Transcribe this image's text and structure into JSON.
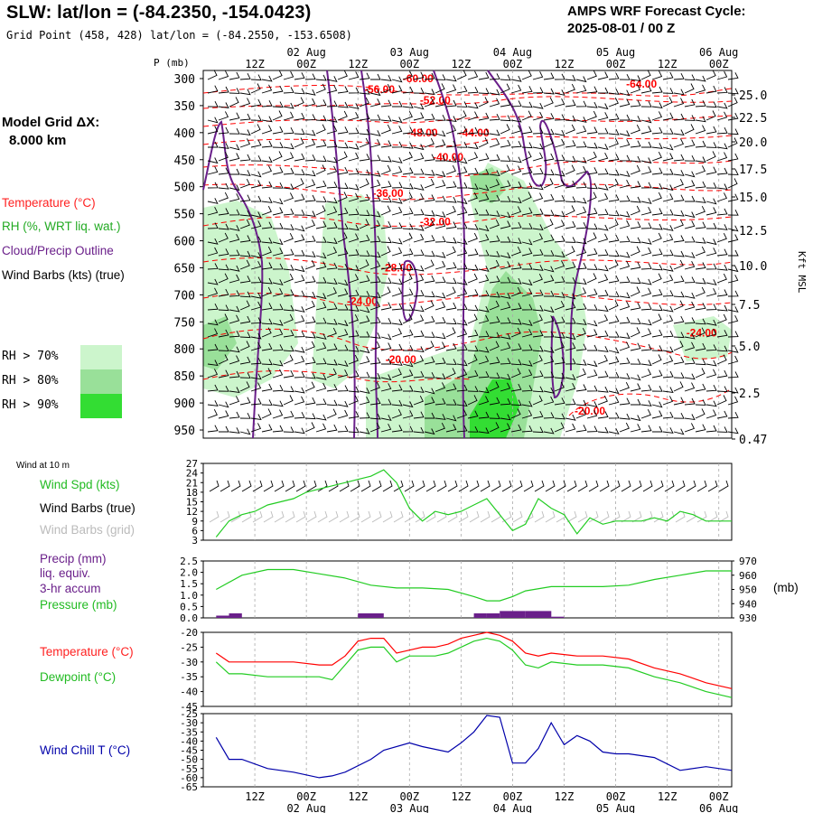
{
  "header": {
    "title": "SLW:  lat/lon = (-84.2350, -154.0423)",
    "subtitle": "Grid Point (458, 428) lat/lon = (-84.2550, -153.6508)",
    "cycle_line1": "AMPS WRF Forecast Cycle:",
    "cycle_line2": "2025-08-01 / 00  Z"
  },
  "legend": {
    "model_grid_label": "Model Grid ΔX:",
    "model_grid_value": "8.000 km",
    "temperature": "Temperature (°C)",
    "rh": "RH (%, WRT liq. wat.)",
    "cloud": "Cloud/Precip Outline",
    "wind_barbs": "Wind Barbs (kts) (true)",
    "rh70": "RH > 70%",
    "rh80": "RH > 80%",
    "rh90": "RH > 90%"
  },
  "colors": {
    "temperature": "#ff0000",
    "rh": "#22bb22",
    "cloud": "#6a1f8a",
    "rh70": "#ccf5cc",
    "rh80": "#99e099",
    "rh90": "#33dd33",
    "wind_chill": "#0000aa",
    "grid": "#aaaaaa"
  },
  "lower_labels": {
    "wind_at_10m": "Wind at 10 m",
    "wind_spd": "Wind Spd (kts)",
    "wind_barbs_true": "Wind Barbs (true)",
    "wind_barbs_grid": "Wind Barbs (grid)",
    "precip": "Precip (mm)",
    "liq_equiv": "liq. equiv.",
    "accum": "3-hr accum",
    "pressure": "Pressure (mb)",
    "pressure_unit": "(mb)",
    "temperature": "Temperature (°C)",
    "dewpoint": "Dewpoint (°C)",
    "wind_chill": "Wind Chill T (°C)"
  },
  "chart_data": {
    "type": "meteogram",
    "time_axis": {
      "hour_labels": [
        "12Z",
        "00Z",
        "12Z",
        "00Z",
        "12Z",
        "00Z",
        "12Z",
        "00Z",
        "12Z",
        "00Z"
      ],
      "date_labels": [
        "02 Aug",
        "03 Aug",
        "04 Aug",
        "05 Aug",
        "06 Aug"
      ],
      "hours_range": [
        3,
        120
      ]
    },
    "cross_section": {
      "pressure_label": "P (mb)",
      "pressure_levels": [
        300,
        350,
        400,
        450,
        500,
        550,
        600,
        650,
        700,
        750,
        800,
        850,
        900,
        950
      ],
      "height_label": "Kft MSL",
      "height_ticks": [
        "25.0",
        "22.5",
        "20.0",
        "17.5",
        "15.0",
        "12.5",
        "10.0",
        "7.5",
        "5.0",
        "2.5",
        "0.47"
      ],
      "temperature_contour_labels": [
        {
          "label": "-60.00",
          "t": 47,
          "p": 300
        },
        {
          "label": "-64.00",
          "t": 99,
          "p": 310
        },
        {
          "label": "-56.00",
          "t": 38,
          "p": 320
        },
        {
          "label": "-52.00",
          "t": 51,
          "p": 340
        },
        {
          "label": "-48.00",
          "t": 48,
          "p": 400
        },
        {
          "label": "-44.00",
          "t": 60,
          "p": 400
        },
        {
          "label": "-40.00",
          "t": 54,
          "p": 445
        },
        {
          "label": "-36.00",
          "t": 40,
          "p": 512
        },
        {
          "label": "-32.00",
          "t": 51,
          "p": 565
        },
        {
          "label": "-28.00",
          "t": 42,
          "p": 650
        },
        {
          "label": "-24.00",
          "t": 34,
          "p": 712
        },
        {
          "label": "-24.00",
          "t": 113,
          "p": 770
        },
        {
          "label": "-20.00",
          "t": 43,
          "p": 820
        },
        {
          "label": "-20.00",
          "t": 87,
          "p": 915
        }
      ]
    },
    "wind_speed_10m": {
      "ylabel": "Wind Spd (kts)",
      "ylim": [
        3,
        27
      ],
      "ticks": [
        3,
        6,
        9,
        12,
        15,
        18,
        21,
        24,
        27
      ],
      "x": [
        0,
        3,
        6,
        9,
        12,
        15,
        18,
        21,
        24,
        27,
        30,
        33,
        36,
        39,
        42,
        45,
        48,
        51,
        54,
        57,
        60,
        63,
        66,
        69,
        72,
        75,
        78,
        81,
        84,
        87,
        90,
        93,
        96,
        99,
        102,
        105,
        108,
        111,
        114,
        117,
        120
      ],
      "values": [
        4,
        9,
        11,
        12,
        14,
        15,
        16,
        18,
        19,
        20,
        21,
        22,
        23,
        25,
        21,
        13,
        9,
        12,
        11,
        12,
        14,
        16,
        11,
        6,
        8,
        16,
        13,
        11,
        5,
        10,
        8,
        9,
        9,
        9,
        10,
        9,
        12,
        11,
        9,
        9,
        9
      ]
    },
    "precip": {
      "ylabel": "Precip (mm)",
      "ylim": [
        0,
        2.5
      ],
      "ticks": [
        0.0,
        0.5,
        1.0,
        1.5,
        2.0,
        2.5
      ],
      "bins": [
        {
          "t": 0,
          "mm": 0.1
        },
        {
          "t": 3,
          "mm": 0.2
        },
        {
          "t": 33,
          "mm": 0.2
        },
        {
          "t": 36,
          "mm": 0.2
        },
        {
          "t": 60,
          "mm": 0.2
        },
        {
          "t": 63,
          "mm": 0.2
        },
        {
          "t": 66,
          "mm": 0.3
        },
        {
          "t": 69,
          "mm": 0.3
        },
        {
          "t": 72,
          "mm": 0.3
        },
        {
          "t": 75,
          "mm": 0.3
        },
        {
          "t": 78,
          "mm": 0.05
        }
      ]
    },
    "pressure": {
      "ylabel": "Pressure (mb)",
      "ylim": [
        930,
        970
      ],
      "ticks": [
        930,
        940,
        950,
        960,
        970
      ],
      "x": [
        0,
        6,
        12,
        18,
        24,
        30,
        36,
        42,
        48,
        54,
        60,
        63,
        66,
        69,
        72,
        78,
        84,
        90,
        96,
        102,
        108,
        114,
        120
      ],
      "values": [
        950,
        960,
        964,
        964,
        961,
        958,
        953,
        951,
        951,
        950,
        945,
        942,
        942,
        945,
        949,
        952,
        952,
        952,
        953,
        957,
        960,
        963,
        963
      ]
    },
    "temperature": {
      "ylim": [
        -45,
        -20
      ],
      "ticks": [
        -45,
        -40,
        -35,
        -30,
        -25,
        -20
      ],
      "x": [
        0,
        3,
        6,
        12,
        18,
        24,
        27,
        30,
        33,
        36,
        39,
        42,
        45,
        48,
        51,
        54,
        57,
        60,
        63,
        66,
        69,
        72,
        75,
        78,
        84,
        90,
        96,
        102,
        108,
        114,
        120
      ],
      "values": [
        -27,
        -30,
        -30,
        -30,
        -30,
        -31,
        -31,
        -28,
        -23,
        -22,
        -22,
        -27,
        -26,
        -25,
        -25,
        -24,
        -22,
        -21,
        -20,
        -21,
        -23,
        -27,
        -28,
        -27,
        -28,
        -28,
        -29,
        -32,
        -34,
        -37,
        -39
      ]
    },
    "dewpoint": {
      "x": [
        0,
        3,
        6,
        12,
        18,
        24,
        27,
        30,
        33,
        36,
        39,
        42,
        45,
        48,
        51,
        54,
        57,
        60,
        63,
        66,
        69,
        72,
        75,
        78,
        84,
        90,
        96,
        102,
        108,
        114,
        120
      ],
      "values": [
        -30,
        -34,
        -34,
        -35,
        -35,
        -35,
        -36,
        -31,
        -26,
        -25,
        -25,
        -30,
        -28,
        -28,
        -28,
        -27,
        -25,
        -23,
        -22,
        -23,
        -26,
        -31,
        -32,
        -30,
        -31,
        -31,
        -32,
        -35,
        -37,
        -40,
        -42
      ]
    },
    "wind_chill": {
      "ylabel": "Wind Chill T (°C)",
      "ylim": [
        -65,
        -25
      ],
      "ticks": [
        -65,
        -60,
        -55,
        -50,
        -45,
        -40,
        -35,
        -30,
        -25
      ],
      "x": [
        0,
        3,
        6,
        12,
        18,
        24,
        27,
        30,
        36,
        39,
        45,
        48,
        54,
        57,
        60,
        63,
        66,
        69,
        72,
        75,
        78,
        81,
        84,
        87,
        90,
        93,
        96,
        102,
        108,
        114,
        120
      ],
      "values": [
        -38,
        -50,
        -50,
        -55,
        -57,
        -60,
        -59,
        -57,
        -50,
        -45,
        -41,
        -43,
        -46,
        -41,
        -35,
        -26,
        -27,
        -52,
        -52,
        -44,
        -30,
        -42,
        -37,
        -40,
        -46,
        -47,
        -47,
        -49,
        -56,
        -54,
        -56
      ]
    }
  }
}
